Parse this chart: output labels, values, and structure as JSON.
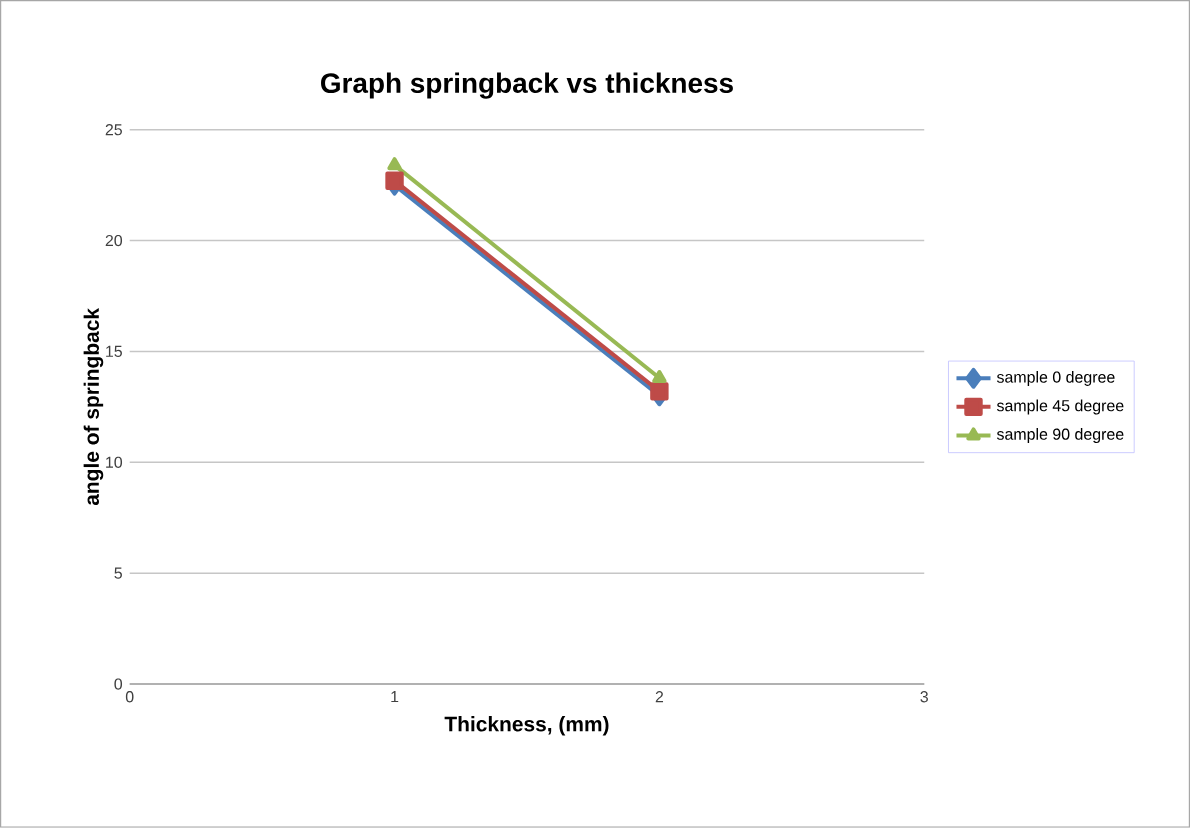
{
  "chart_data": {
    "type": "line",
    "title": "Graph springback vs thickness",
    "xlabel": "Thickness, (mm)",
    "ylabel": "angle of springback",
    "x": [
      1,
      2
    ],
    "series": [
      {
        "name": "sample 0 degree",
        "color": "#4a7ebb",
        "marker": "diamond",
        "values": [
          22.5,
          13.0
        ]
      },
      {
        "name": "sample 45 degree",
        "color": "#be4b48",
        "marker": "square",
        "values": [
          22.7,
          13.2
        ]
      },
      {
        "name": "sample 90 degree",
        "color": "#98b954",
        "marker": "triangle",
        "values": [
          23.4,
          13.8
        ]
      }
    ],
    "xlim": [
      0,
      3
    ],
    "xticks": [
      0,
      1,
      2,
      3
    ],
    "ylim": [
      0,
      25
    ],
    "yticks": [
      0,
      5,
      10,
      15,
      20,
      25
    ],
    "grid": "y",
    "legend": "right",
    "line_style": "solid"
  }
}
